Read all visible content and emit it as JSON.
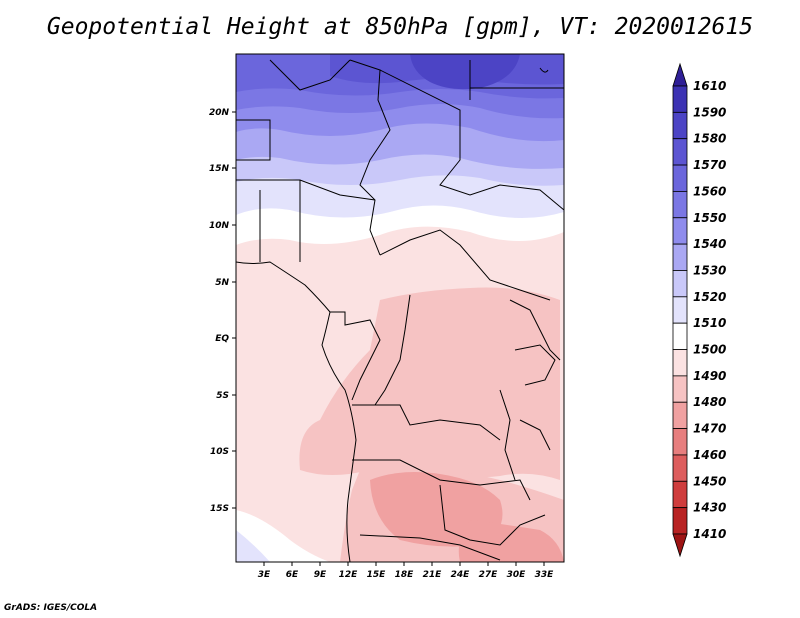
{
  "title": "Geopotential Height at 850hPa [gpm], VT: 2020012615",
  "footer": "GrADS: IGES/COLA",
  "map": {
    "lat_ticks": [
      "20N",
      "15N",
      "10N",
      "5N",
      "EQ",
      "5S",
      "10S",
      "15S"
    ],
    "lon_ticks": [
      "3E",
      "6E",
      "9E",
      "12E",
      "15E",
      "18E",
      "21E",
      "24E",
      "27E",
      "30E",
      "33E"
    ]
  },
  "legend": {
    "levels": [
      "1610",
      "1590",
      "1580",
      "1570",
      "1560",
      "1550",
      "1540",
      "1530",
      "1520",
      "1510",
      "1500",
      "1490",
      "1480",
      "1470",
      "1460",
      "1450",
      "1430",
      "1410"
    ],
    "colors": [
      "#2f1f97",
      "#3c32b3",
      "#4c44c5",
      "#5c55d2",
      "#6b66dc",
      "#7b77e4",
      "#8f8ced",
      "#aaa8f3",
      "#c9c8f9",
      "#e3e3fc",
      "#ffffff",
      "#fbe2e2",
      "#f6c3c3",
      "#f0a1a1",
      "#e77e7e",
      "#dd5d5d",
      "#cf3d3d",
      "#b82323",
      "#9d1414"
    ]
  },
  "colors": {
    "map_land_warm": "#fbe2e2",
    "map_warm_mid": "#f6c3c3",
    "map_warm_deep": "#f0a1a1"
  }
}
